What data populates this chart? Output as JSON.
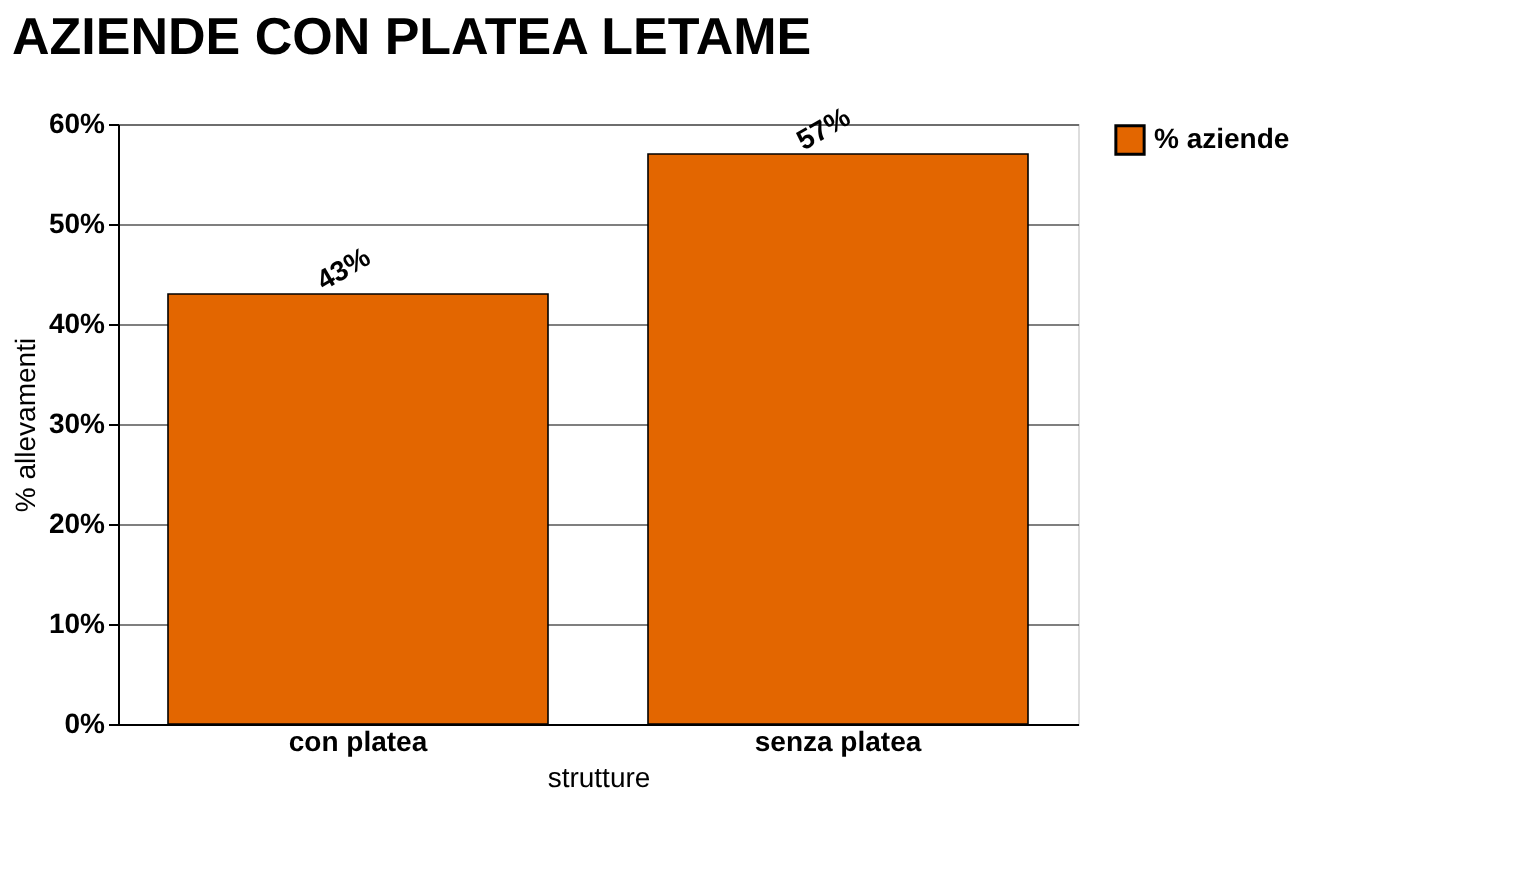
{
  "chart_data": {
    "type": "bar",
    "title": "AZIENDE CON PLATEA LETAME",
    "xlabel": "strutture",
    "ylabel": "% allevamenti",
    "categories": [
      "con platea",
      "senza platea"
    ],
    "series": [
      {
        "name": "% aziende",
        "color": "#e36600",
        "values": [
          43,
          57
        ],
        "value_labels": [
          "43%",
          "57%"
        ]
      }
    ],
    "ylim": [
      0,
      60
    ],
    "yticks": [
      {
        "value": 0,
        "label": "0%"
      },
      {
        "value": 10,
        "label": "10%"
      },
      {
        "value": 20,
        "label": "20%"
      },
      {
        "value": 30,
        "label": "30%"
      },
      {
        "value": 40,
        "label": "40%"
      },
      {
        "value": 50,
        "label": "50%"
      },
      {
        "value": 60,
        "label": "60%"
      }
    ],
    "grid": "y",
    "legend": "right"
  }
}
